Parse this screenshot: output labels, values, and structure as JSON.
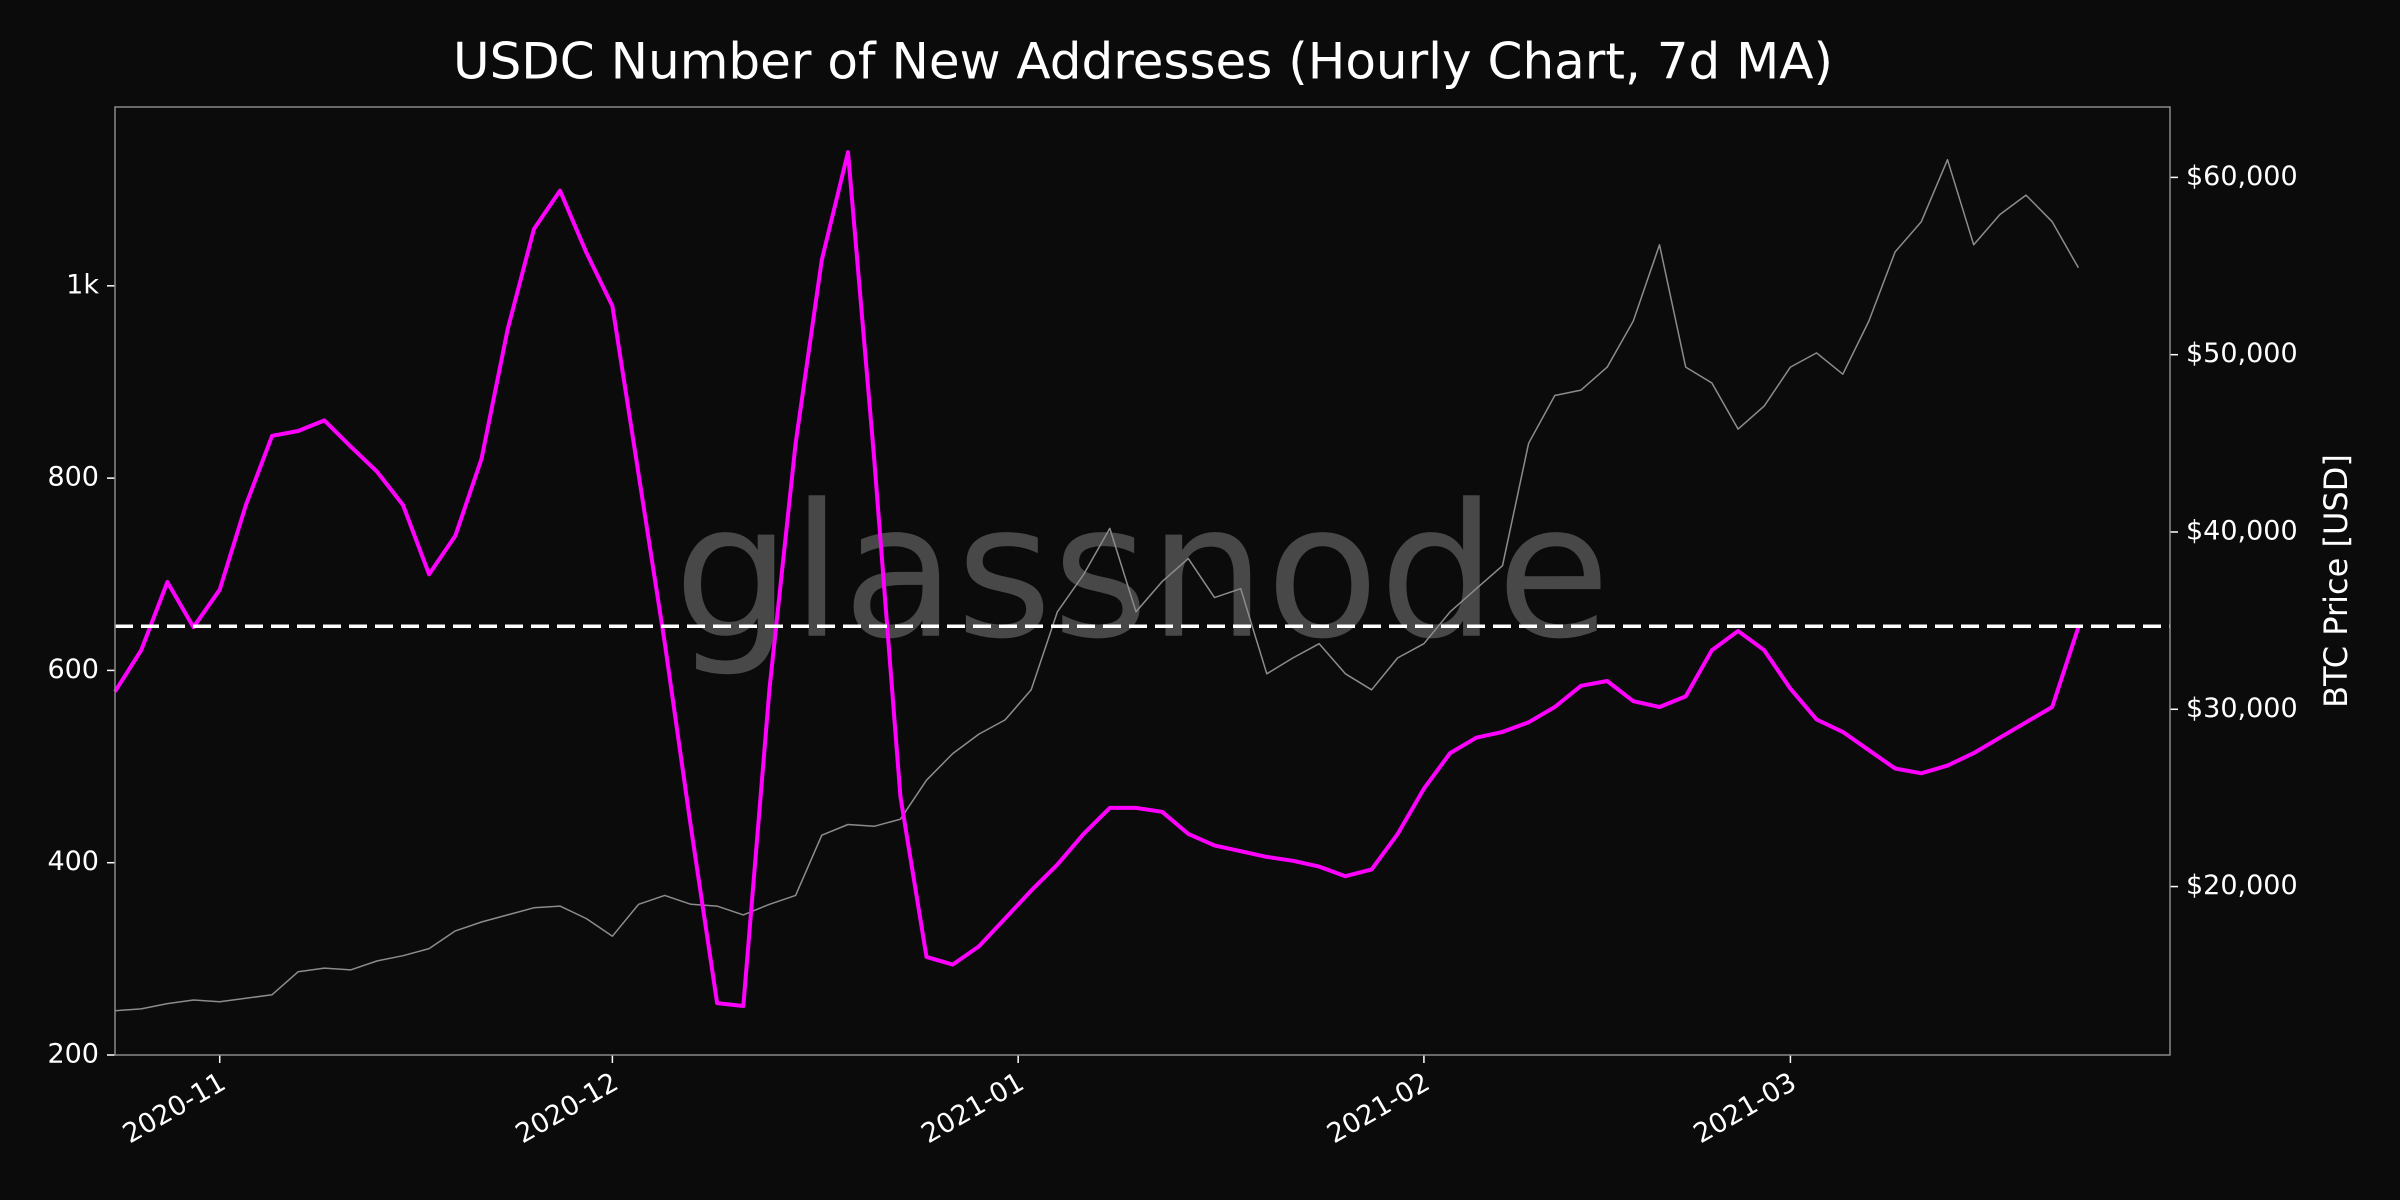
{
  "chart_data": {
    "type": "line",
    "title": "USDC Number of New Addresses (Hourly Chart, 7d MA)",
    "watermark": "glassnode",
    "y2label": "BTC Price [USD]",
    "x": [
      0,
      2,
      4,
      6,
      8,
      10,
      12,
      14,
      16,
      18,
      20,
      22,
      24,
      26,
      28,
      30,
      32,
      34,
      36,
      38,
      40,
      42,
      44,
      46,
      48,
      50,
      52,
      54,
      56,
      58,
      60,
      62,
      64,
      66,
      68,
      70,
      72,
      74,
      76,
      78,
      80,
      82,
      84,
      86,
      88,
      90,
      92,
      94,
      96,
      98,
      100,
      102,
      104,
      106,
      108,
      110,
      112,
      114,
      116,
      118,
      120,
      122,
      124,
      126,
      128,
      130,
      132,
      134,
      136,
      138,
      140,
      142,
      144,
      146,
      148,
      150
    ],
    "xlim": [
      0,
      157
    ],
    "xticks": [
      {
        "value": 8,
        "label": "2020-11"
      },
      {
        "value": 38,
        "label": "2020-12"
      },
      {
        "value": 69,
        "label": "2021-01"
      },
      {
        "value": 100,
        "label": "2021-02"
      },
      {
        "value": 128,
        "label": "2021-03"
      }
    ],
    "ylim": [
      200,
      1186
    ],
    "yticks": [
      200,
      400,
      600,
      800,
      {
        "value": 1000,
        "label": "1k"
      }
    ],
    "y2lim": [
      10500,
      63970
    ],
    "y2ticks": [
      {
        "value": 20000,
        "label": "$20,000"
      },
      {
        "value": 30000,
        "label": "$30,000"
      },
      {
        "value": 40000,
        "label": "$40,000"
      },
      {
        "value": 50000,
        "label": "$50,000"
      },
      {
        "value": 60000,
        "label": "$60,000"
      }
    ],
    "hline": 646,
    "series": [
      {
        "color": "#ff00ff",
        "axis": "y",
        "values": [
          578,
          621,
          692,
          645,
          684,
          772,
          844,
          849,
          860,
          833,
          807,
          772,
          700,
          740,
          820,
          955,
          1059,
          1099,
          1035,
          979,
          804,
          629,
          437,
          254,
          251,
          581,
          836,
          1027,
          1139,
          820,
          469,
          302,
          294,
          313,
          342,
          371,
          398,
          430,
          457,
          457,
          453,
          430,
          418,
          412,
          406,
          402,
          396,
          386,
          393,
          430,
          477,
          514,
          530,
          536,
          546,
          562,
          584,
          589,
          568,
          562,
          573,
          621,
          641,
          621,
          581,
          549,
          536,
          517,
          498,
          493,
          501,
          514,
          530,
          546,
          562,
          645
        ]
      },
      {
        "color": "#8c8c8c",
        "axis": "y2",
        "values": [
          13000,
          13100,
          13400,
          13600,
          13500,
          13700,
          13900,
          15200,
          15400,
          15300,
          15800,
          16100,
          16500,
          17500,
          18000,
          18400,
          18800,
          18900,
          18200,
          17200,
          19000,
          19500,
          19000,
          18900,
          18400,
          19000,
          19500,
          22900,
          23500,
          23400,
          23800,
          26000,
          27500,
          28600,
          29400,
          31100,
          35500,
          37600,
          40200,
          35500,
          37200,
          38500,
          36300,
          36800,
          32000,
          32900,
          33700,
          32000,
          31100,
          32900,
          33700,
          35500,
          36800,
          38100,
          45000,
          47700,
          48000,
          49300,
          51900,
          56200,
          49300,
          48400,
          45800,
          47100,
          49300,
          50100,
          48900,
          51900,
          55800,
          57500,
          61000,
          56200,
          57900,
          59000,
          57500,
          54900
        ]
      }
    ]
  }
}
